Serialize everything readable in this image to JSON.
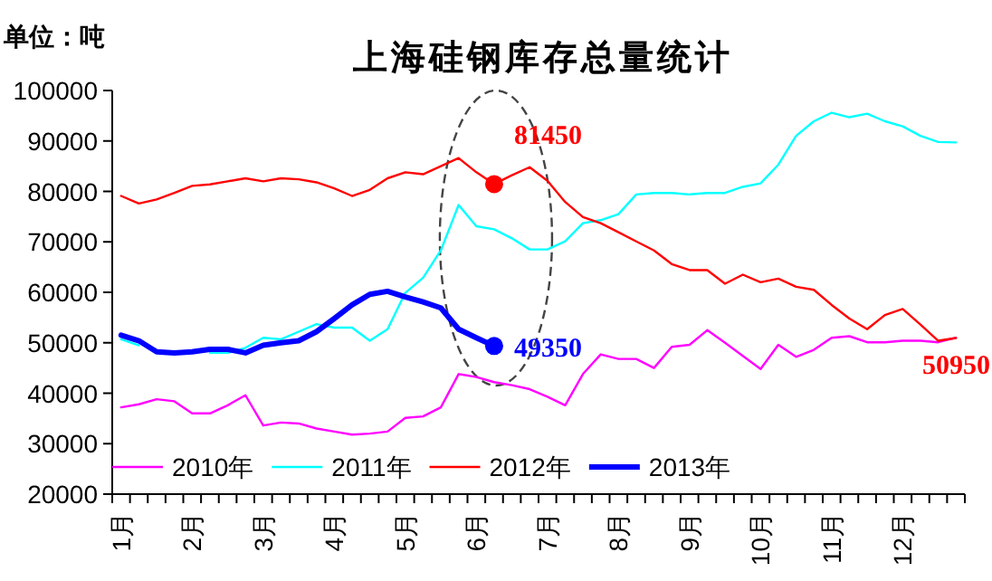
{
  "chart_data": {
    "type": "line",
    "title": "上海硅钢库存总量统计",
    "ylabel": "单位：吨",
    "categories": [
      "1月",
      null,
      null,
      null,
      "2月",
      null,
      null,
      null,
      "3月",
      null,
      null,
      null,
      "4月",
      null,
      null,
      null,
      "5月",
      null,
      null,
      null,
      "6月",
      null,
      null,
      null,
      "7月",
      null,
      null,
      null,
      "8月",
      null,
      null,
      null,
      "9月",
      null,
      null,
      null,
      "10月",
      null,
      null,
      null,
      "11月",
      null,
      null,
      null,
      "12月",
      null,
      null,
      null
    ],
    "ylim": [
      20000,
      100000
    ],
    "yticks": [
      20000,
      30000,
      40000,
      50000,
      60000,
      70000,
      80000,
      90000,
      100000
    ],
    "grid": false,
    "legend": "bottom",
    "marker": "none",
    "line_style": "solid",
    "series": [
      {
        "name": "2010年",
        "color": "#ff00ff",
        "values": [
          37200,
          37800,
          38800,
          38400,
          36000,
          36000,
          37600,
          39600,
          33600,
          34200,
          34000,
          33000,
          32400,
          31800,
          32000,
          32400,
          35100,
          35400,
          37200,
          43800,
          43200,
          42200,
          41600,
          40800,
          39300,
          37600,
          43800,
          47700,
          46800,
          46800,
          45000,
          49200,
          49600,
          52500,
          50000,
          47400,
          44800,
          49600,
          47200,
          48600,
          51000,
          51300,
          50100,
          50100,
          50400,
          50400,
          50100,
          51000
        ]
      },
      {
        "name": "2011年",
        "color": "#00ffff",
        "values": [
          50700,
          49500,
          null,
          null,
          null,
          48000,
          48000,
          49000,
          51000,
          50700,
          52200,
          53700,
          53000,
          53000,
          50400,
          52700,
          59900,
          62900,
          68300,
          77300,
          73100,
          72500,
          70700,
          68500,
          68500,
          70100,
          73700,
          74300,
          75500,
          79400,
          79700,
          79700,
          79400,
          79700,
          79700,
          80900,
          81600,
          85300,
          91000,
          93900,
          95600,
          94700,
          95400,
          93900,
          92900,
          91000,
          89800,
          89700
        ]
      },
      {
        "name": "2012年",
        "color": "#ff0000",
        "values": [
          79100,
          77600,
          78400,
          79700,
          81100,
          81400,
          82000,
          82600,
          82000,
          82600,
          82400,
          81800,
          80600,
          79100,
          80300,
          82600,
          83800,
          83400,
          85000,
          86600,
          83800,
          81450,
          83200,
          84800,
          82100,
          77900,
          74900,
          73700,
          71900,
          70100,
          68300,
          65600,
          64400,
          64400,
          61700,
          63500,
          62000,
          62700,
          61100,
          60500,
          57500,
          54800,
          52700,
          55500,
          56700,
          53600,
          50400,
          50950
        ],
        "value_labels": [
          null,
          null,
          null,
          null,
          null,
          null,
          null,
          null,
          null,
          null,
          null,
          null,
          null,
          null,
          null,
          null,
          null,
          null,
          null,
          null,
          null,
          "81450",
          null,
          null,
          null,
          null,
          null,
          null,
          null,
          null,
          null,
          null,
          null,
          null,
          null,
          null,
          null,
          null,
          null,
          null,
          null,
          null,
          null,
          null,
          null,
          null,
          null,
          "50950"
        ]
      },
      {
        "name": "2013年",
        "color": "#0000ff",
        "values": [
          51500,
          50400,
          48200,
          48000,
          48200,
          48700,
          48700,
          48000,
          49500,
          50000,
          50400,
          52200,
          54800,
          57500,
          59600,
          60200,
          59100,
          58100,
          56900,
          52700,
          51000,
          49350,
          null,
          null,
          null,
          null,
          null,
          null,
          null,
          null,
          null,
          null,
          null,
          null,
          null,
          null,
          null,
          null,
          null,
          null,
          null,
          null,
          null,
          null,
          null,
          null,
          null,
          null
        ],
        "value_labels": [
          null,
          null,
          null,
          null,
          null,
          null,
          null,
          null,
          null,
          null,
          null,
          null,
          null,
          null,
          null,
          null,
          null,
          null,
          null,
          null,
          null,
          "49350",
          null,
          null,
          null,
          null,
          null,
          null,
          null,
          null,
          null,
          null,
          null,
          null,
          null,
          null,
          null,
          null,
          null,
          null,
          null,
          null,
          null,
          null,
          null,
          null,
          null,
          null
        ]
      }
    ]
  }
}
